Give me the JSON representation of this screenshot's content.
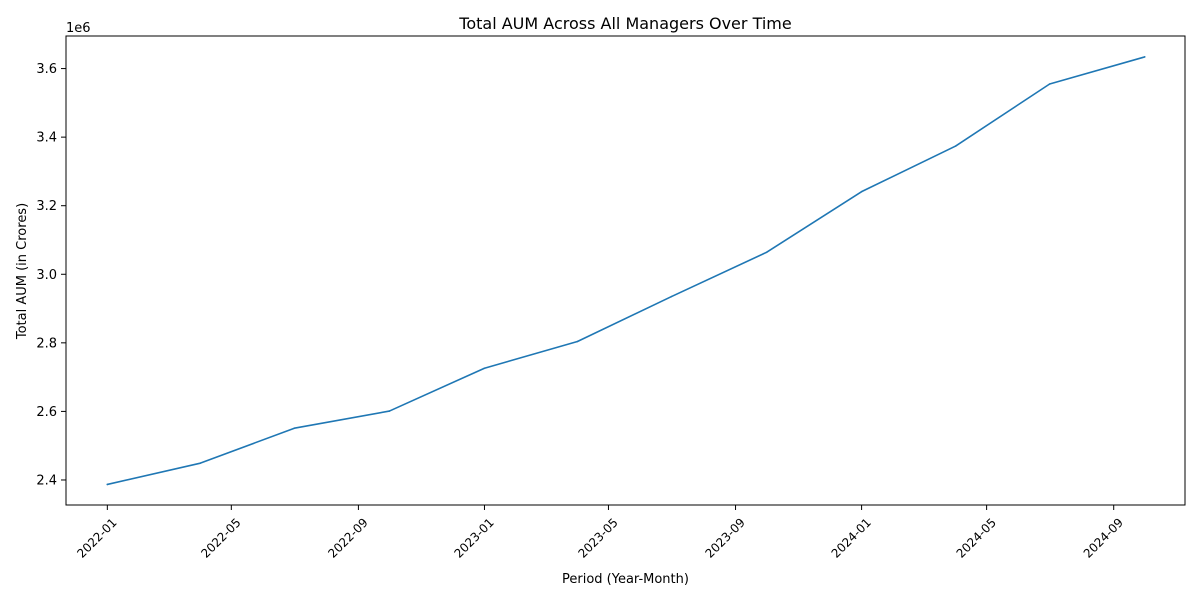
{
  "chart_data": {
    "type": "line",
    "title": "Total AUM Across All Managers Over Time",
    "xlabel": "Period (Year-Month)",
    "ylabel": "Total AUM (in Crores)",
    "y_offset_label": "1e6",
    "y_multiplier": 1000000,
    "xlim": [
      "2021-11-22",
      "2024-11-09"
    ],
    "ylim": [
      2.327,
      3.695
    ],
    "x_ticks": [
      "2022-01",
      "2022-05",
      "2022-09",
      "2023-01",
      "2023-05",
      "2023-09",
      "2024-01",
      "2024-05",
      "2024-09"
    ],
    "y_ticks": [
      2.4,
      2.6,
      2.8,
      3.0,
      3.2,
      3.4,
      3.6
    ],
    "grid": false,
    "series": [
      {
        "color": "#1f77b4",
        "x": [
          "2022-01-01",
          "2022-04-01",
          "2022-07-01",
          "2022-10-01",
          "2023-01-01",
          "2023-04-01",
          "2023-07-01",
          "2023-10-01",
          "2024-01-01",
          "2024-04-01",
          "2024-07-01",
          "2024-10-01"
        ],
        "y": [
          2.387,
          2.449,
          2.551,
          2.601,
          2.726,
          2.804,
          2.935,
          3.064,
          3.241,
          3.374,
          3.555,
          3.634
        ]
      }
    ]
  }
}
